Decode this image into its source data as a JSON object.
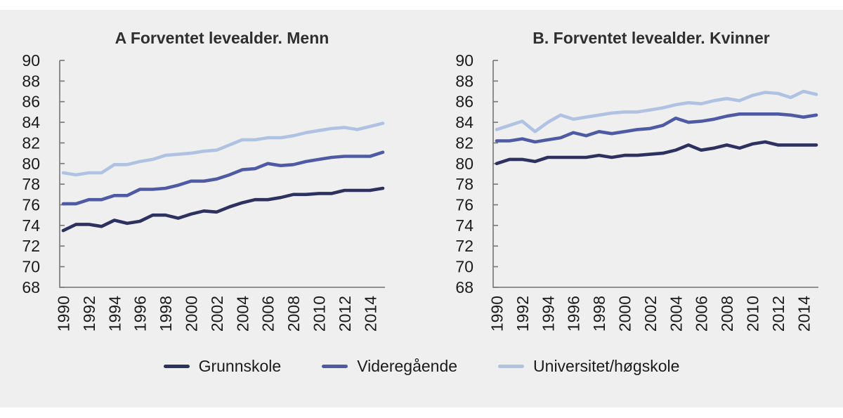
{
  "page": {
    "background": "#ffffff",
    "panel_background": "#f0efef",
    "axis_color": "#7c7c7c",
    "text_color": "#1b1b1b",
    "title_color": "#2f2f2f"
  },
  "chart_data": [
    {
      "type": "line",
      "title": "A Forventet levealder. Menn",
      "x": [
        1990,
        1991,
        1992,
        1993,
        1994,
        1995,
        1996,
        1997,
        1998,
        1999,
        2000,
        2001,
        2002,
        2003,
        2004,
        2005,
        2006,
        2007,
        2008,
        2009,
        2010,
        2011,
        2012,
        2013,
        2014,
        2015
      ],
      "xticks": [
        1990,
        1992,
        1994,
        1996,
        1998,
        2000,
        2002,
        2004,
        2006,
        2008,
        2010,
        2012,
        2014
      ],
      "ylim": [
        68,
        90
      ],
      "ytick_step": 2,
      "grid": false,
      "legend_position": "bottom-shared",
      "series": [
        {
          "name": "Grunnskole",
          "color": "#2d3160",
          "values": [
            73.5,
            74.1,
            74.1,
            73.9,
            74.5,
            74.2,
            74.4,
            75.0,
            75.0,
            74.7,
            75.1,
            75.4,
            75.3,
            75.8,
            76.2,
            76.5,
            76.5,
            76.7,
            77.0,
            77.0,
            77.1,
            77.1,
            77.4,
            77.4,
            77.4,
            77.6
          ]
        },
        {
          "name": "Videregående",
          "color": "#4e5ba4",
          "values": [
            76.1,
            76.1,
            76.5,
            76.5,
            76.9,
            76.9,
            77.5,
            77.5,
            77.6,
            77.9,
            78.3,
            78.3,
            78.5,
            78.9,
            79.4,
            79.5,
            80.0,
            79.8,
            79.9,
            80.2,
            80.4,
            80.6,
            80.7,
            80.7,
            80.7,
            81.1
          ]
        },
        {
          "name": "Universitet/høgskole",
          "color": "#b0c2e2",
          "values": [
            79.1,
            78.9,
            79.1,
            79.1,
            79.9,
            79.9,
            80.2,
            80.4,
            80.8,
            80.9,
            81.0,
            81.2,
            81.3,
            81.8,
            82.3,
            82.3,
            82.5,
            82.5,
            82.7,
            83.0,
            83.2,
            83.4,
            83.5,
            83.3,
            83.6,
            83.9
          ]
        }
      ]
    },
    {
      "type": "line",
      "title": "B. Forventet levealder. Kvinner",
      "x": [
        1990,
        1991,
        1992,
        1993,
        1994,
        1995,
        1996,
        1997,
        1998,
        1999,
        2000,
        2001,
        2002,
        2003,
        2004,
        2005,
        2006,
        2007,
        2008,
        2009,
        2010,
        2011,
        2012,
        2013,
        2014,
        2015
      ],
      "xticks": [
        1990,
        1992,
        1994,
        1996,
        1998,
        2000,
        2002,
        2004,
        2006,
        2008,
        2010,
        2012,
        2014
      ],
      "ylim": [
        68,
        90
      ],
      "ytick_step": 2,
      "grid": false,
      "legend_position": "bottom-shared",
      "series": [
        {
          "name": "Grunnskole",
          "color": "#2d3160",
          "values": [
            80.0,
            80.4,
            80.4,
            80.2,
            80.6,
            80.6,
            80.6,
            80.6,
            80.8,
            80.6,
            80.8,
            80.8,
            80.9,
            81.0,
            81.3,
            81.8,
            81.3,
            81.5,
            81.8,
            81.5,
            81.9,
            82.1,
            81.8,
            81.8,
            81.8,
            81.8
          ]
        },
        {
          "name": "Videregående",
          "color": "#4e5ba4",
          "values": [
            82.2,
            82.2,
            82.4,
            82.1,
            82.3,
            82.5,
            83.0,
            82.7,
            83.1,
            82.9,
            83.1,
            83.3,
            83.4,
            83.7,
            84.4,
            84.0,
            84.1,
            84.3,
            84.6,
            84.8,
            84.8,
            84.8,
            84.8,
            84.7,
            84.5,
            84.7
          ]
        },
        {
          "name": "Universitet/høgskole",
          "color": "#b0c2e2",
          "values": [
            83.3,
            83.7,
            84.1,
            83.1,
            84.0,
            84.7,
            84.3,
            84.5,
            84.7,
            84.9,
            85.0,
            85.0,
            85.2,
            85.4,
            85.7,
            85.9,
            85.8,
            86.1,
            86.3,
            86.1,
            86.6,
            86.9,
            86.8,
            86.4,
            87.0,
            86.7
          ]
        }
      ]
    }
  ],
  "legend": {
    "items": [
      {
        "label": "Grunnskole",
        "color": "#2d3160"
      },
      {
        "label": "Videregående",
        "color": "#4e5ba4"
      },
      {
        "label": "Universitet/høgskole",
        "color": "#b0c2e2"
      }
    ]
  }
}
